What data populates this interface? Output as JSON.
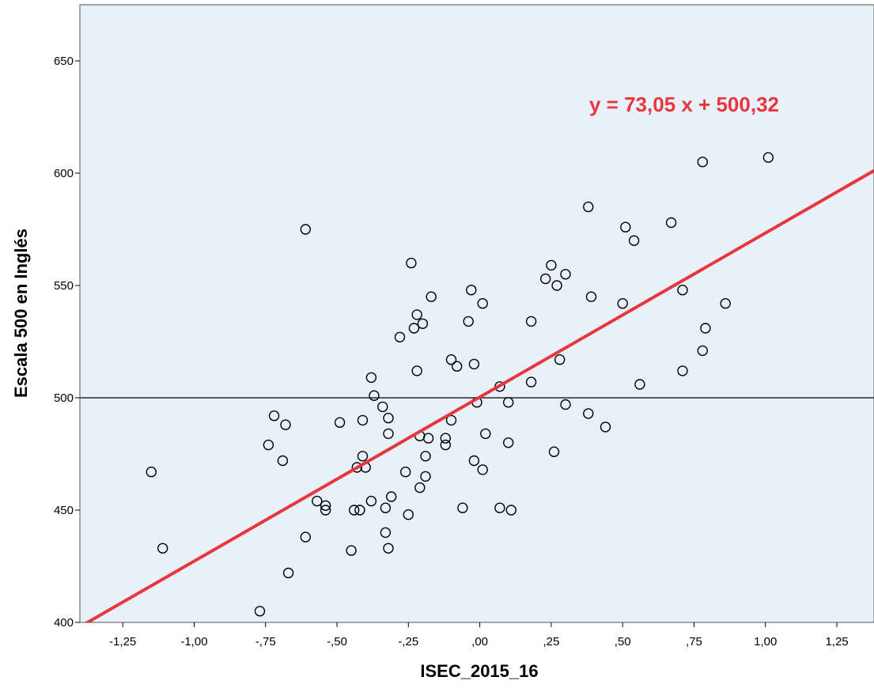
{
  "chart_data": {
    "type": "scatter",
    "xlabel": "ISEC_2015_16",
    "ylabel": "Escala 500 en Inglés",
    "xlim": [
      -1.4,
      1.38
    ],
    "ylim": [
      400,
      675
    ],
    "x_ticks": [
      -1.25,
      -1.0,
      -0.75,
      -0.5,
      -0.25,
      0.0,
      0.25,
      0.5,
      0.75,
      1.0,
      1.25
    ],
    "x_tick_labels": [
      "-1,25",
      "-1,00",
      "-,75",
      "-,50",
      "-,25",
      ",00",
      ",25",
      ",50",
      ",75",
      "1,00",
      "1,25"
    ],
    "y_ticks": [
      400,
      450,
      500,
      550,
      600,
      650
    ],
    "y_tick_labels": [
      "400",
      "450",
      "500",
      "550",
      "600",
      "650"
    ],
    "grid": false,
    "background_color": "#e8f0fa",
    "point_color": "#000000",
    "reference_line": {
      "y": 500,
      "color": "#000000"
    },
    "fit_line": {
      "slope": 73.05,
      "intercept": 500.32,
      "color": "#e8373c",
      "label": "y = 73,05 x + 500,32"
    },
    "points": [
      [
        -1.15,
        467
      ],
      [
        -1.11,
        433
      ],
      [
        -0.77,
        405
      ],
      [
        -0.74,
        479
      ],
      [
        -0.72,
        492
      ],
      [
        -0.69,
        472
      ],
      [
        -0.68,
        488
      ],
      [
        -0.67,
        422
      ],
      [
        -0.61,
        575
      ],
      [
        -0.61,
        438
      ],
      [
        -0.57,
        454
      ],
      [
        -0.54,
        452
      ],
      [
        -0.54,
        450
      ],
      [
        -0.49,
        489
      ],
      [
        -0.45,
        432
      ],
      [
        -0.44,
        450
      ],
      [
        -0.43,
        469
      ],
      [
        -0.42,
        450
      ],
      [
        -0.41,
        474
      ],
      [
        -0.41,
        490
      ],
      [
        -0.4,
        469
      ],
      [
        -0.38,
        509
      ],
      [
        -0.38,
        454
      ],
      [
        -0.37,
        501
      ],
      [
        -0.34,
        496
      ],
      [
        -0.33,
        440
      ],
      [
        -0.33,
        451
      ],
      [
        -0.32,
        491
      ],
      [
        -0.32,
        484
      ],
      [
        -0.32,
        433
      ],
      [
        -0.31,
        456
      ],
      [
        -0.28,
        527
      ],
      [
        -0.26,
        467
      ],
      [
        -0.25,
        448
      ],
      [
        -0.24,
        560
      ],
      [
        -0.23,
        531
      ],
      [
        -0.22,
        537
      ],
      [
        -0.22,
        512
      ],
      [
        -0.21,
        483
      ],
      [
        -0.21,
        460
      ],
      [
        -0.2,
        533
      ],
      [
        -0.19,
        465
      ],
      [
        -0.19,
        474
      ],
      [
        -0.18,
        482
      ],
      [
        -0.17,
        545
      ],
      [
        -0.12,
        482
      ],
      [
        -0.12,
        479
      ],
      [
        -0.1,
        517
      ],
      [
        -0.1,
        490
      ],
      [
        -0.08,
        514
      ],
      [
        -0.06,
        451
      ],
      [
        -0.04,
        534
      ],
      [
        -0.03,
        548
      ],
      [
        -0.02,
        472
      ],
      [
        -0.02,
        515
      ],
      [
        -0.01,
        498
      ],
      [
        0.01,
        542
      ],
      [
        0.01,
        468
      ],
      [
        0.02,
        484
      ],
      [
        0.07,
        505
      ],
      [
        0.07,
        451
      ],
      [
        0.1,
        498
      ],
      [
        0.1,
        480
      ],
      [
        0.11,
        450
      ],
      [
        0.18,
        534
      ],
      [
        0.18,
        507
      ],
      [
        0.23,
        553
      ],
      [
        0.25,
        559
      ],
      [
        0.26,
        476
      ],
      [
        0.27,
        550
      ],
      [
        0.28,
        517
      ],
      [
        0.3,
        555
      ],
      [
        0.3,
        497
      ],
      [
        0.38,
        585
      ],
      [
        0.38,
        493
      ],
      [
        0.39,
        545
      ],
      [
        0.44,
        487
      ],
      [
        0.5,
        542
      ],
      [
        0.51,
        576
      ],
      [
        0.54,
        570
      ],
      [
        0.56,
        506
      ],
      [
        0.67,
        578
      ],
      [
        0.71,
        548
      ],
      [
        0.71,
        512
      ],
      [
        0.78,
        605
      ],
      [
        0.78,
        521
      ],
      [
        0.79,
        531
      ],
      [
        0.86,
        542
      ],
      [
        1.01,
        607
      ]
    ]
  }
}
